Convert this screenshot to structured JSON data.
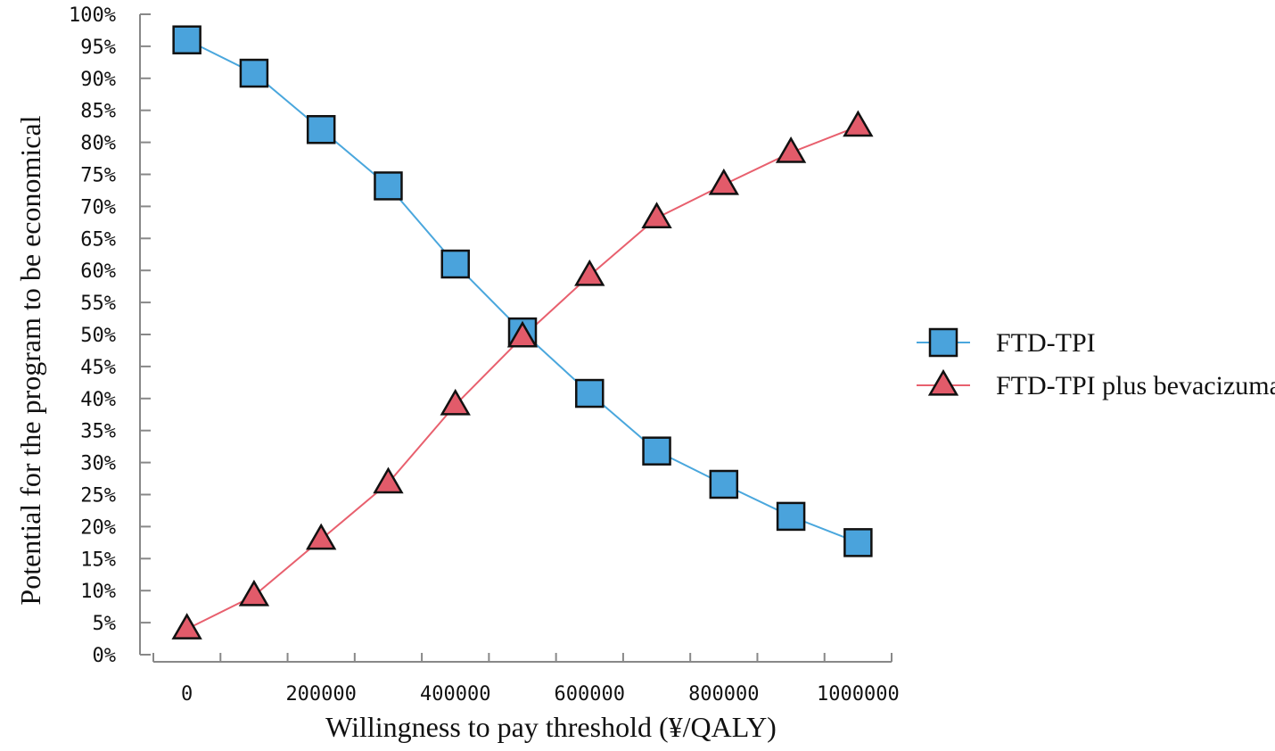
{
  "chart_data": {
    "type": "line",
    "title": "",
    "xlabel": "Willingness to pay threshold (¥/QALY)",
    "ylabel": "Potential for the program to be economical",
    "x_tick_labels": [
      "0",
      "200000",
      "400000",
      "600000",
      "800000",
      "1000000"
    ],
    "x_tick_values": [
      0,
      200000,
      400000,
      600000,
      800000,
      1000000
    ],
    "y_tick_labels": [
      "0%",
      "5%",
      "10%",
      "15%",
      "20%",
      "25%",
      "30%",
      "35%",
      "40%",
      "45%",
      "50%",
      "55%",
      "60%",
      "65%",
      "70%",
      "75%",
      "80%",
      "85%",
      "90%",
      "95%",
      "100%"
    ],
    "y_tick_values": [
      0,
      5,
      10,
      15,
      20,
      25,
      30,
      35,
      40,
      45,
      50,
      55,
      60,
      65,
      70,
      75,
      80,
      85,
      90,
      95,
      100
    ],
    "xlim": [
      -50000,
      1050000
    ],
    "ylim": [
      0,
      100
    ],
    "x": [
      0,
      100000,
      200000,
      300000,
      400000,
      500000,
      600000,
      700000,
      800000,
      900000,
      1000000
    ],
    "series": [
      {
        "name": "FTD-TPI",
        "marker": "square",
        "line_color": "#4aa7dd",
        "marker_color": "#4aa3dc",
        "values": [
          96,
          90.8,
          82,
          73.2,
          61,
          50.4,
          40.8,
          31.8,
          26.6,
          21.6,
          17.5
        ]
      },
      {
        "name": "FTD-TPI plus bevacizumab",
        "marker": "triangle",
        "line_color": "#e8606e",
        "marker_color": "#e25b6a",
        "values": [
          4,
          9.2,
          18,
          26.8,
          39,
          49.6,
          59.2,
          68.2,
          73.4,
          78.4,
          82.5
        ]
      }
    ],
    "legend_position": "right",
    "grid": false
  }
}
